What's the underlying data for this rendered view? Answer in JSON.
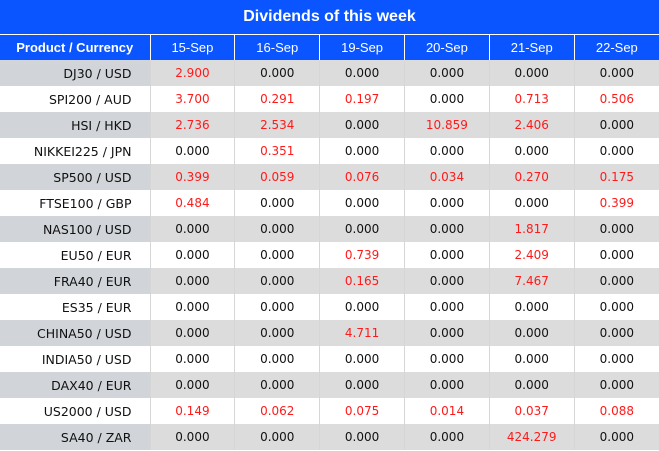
{
  "title": "Dividends of this week",
  "colors": {
    "header_bg": "#0a55ff",
    "nonzero_value": "#ff1a1a",
    "shaded_row": "#dcdcdc"
  },
  "columns": [
    "Product / Currency",
    "15-Sep",
    "16-Sep",
    "19-Sep",
    "20-Sep",
    "21-Sep",
    "22-Sep"
  ],
  "rows": [
    {
      "product": "DJ30 / USD",
      "values": [
        "2.900",
        "0.000",
        "0.000",
        "0.000",
        "0.000",
        "0.000"
      ]
    },
    {
      "product": "SPI200 / AUD",
      "values": [
        "3.700",
        "0.291",
        "0.197",
        "0.000",
        "0.713",
        "0.506"
      ]
    },
    {
      "product": "HSI / HKD",
      "values": [
        "2.736",
        "2.534",
        "0.000",
        "10.859",
        "2.406",
        "0.000"
      ]
    },
    {
      "product": "NIKKEI225 / JPN",
      "values": [
        "0.000",
        "0.351",
        "0.000",
        "0.000",
        "0.000",
        "0.000"
      ]
    },
    {
      "product": "SP500 / USD",
      "values": [
        "0.399",
        "0.059",
        "0.076",
        "0.034",
        "0.270",
        "0.175"
      ]
    },
    {
      "product": "FTSE100 / GBP",
      "values": [
        "0.484",
        "0.000",
        "0.000",
        "0.000",
        "0.000",
        "0.399"
      ]
    },
    {
      "product": "NAS100 / USD",
      "values": [
        "0.000",
        "0.000",
        "0.000",
        "0.000",
        "1.817",
        "0.000"
      ]
    },
    {
      "product": "EU50 / EUR",
      "values": [
        "0.000",
        "0.000",
        "0.739",
        "0.000",
        "2.409",
        "0.000"
      ]
    },
    {
      "product": "FRA40 / EUR",
      "values": [
        "0.000",
        "0.000",
        "0.165",
        "0.000",
        "7.467",
        "0.000"
      ]
    },
    {
      "product": "ES35 / EUR",
      "values": [
        "0.000",
        "0.000",
        "0.000",
        "0.000",
        "0.000",
        "0.000"
      ]
    },
    {
      "product": "CHINA50 / USD",
      "values": [
        "0.000",
        "0.000",
        "4.711",
        "0.000",
        "0.000",
        "0.000"
      ]
    },
    {
      "product": "INDIA50 / USD",
      "values": [
        "0.000",
        "0.000",
        "0.000",
        "0.000",
        "0.000",
        "0.000"
      ]
    },
    {
      "product": "DAX40 / EUR",
      "values": [
        "0.000",
        "0.000",
        "0.000",
        "0.000",
        "0.000",
        "0.000"
      ]
    },
    {
      "product": "US2000 / USD",
      "values": [
        "0.149",
        "0.062",
        "0.075",
        "0.014",
        "0.037",
        "0.088"
      ]
    },
    {
      "product": "SA40 / ZAR",
      "values": [
        "0.000",
        "0.000",
        "0.000",
        "0.000",
        "424.279",
        "0.000"
      ]
    }
  ]
}
